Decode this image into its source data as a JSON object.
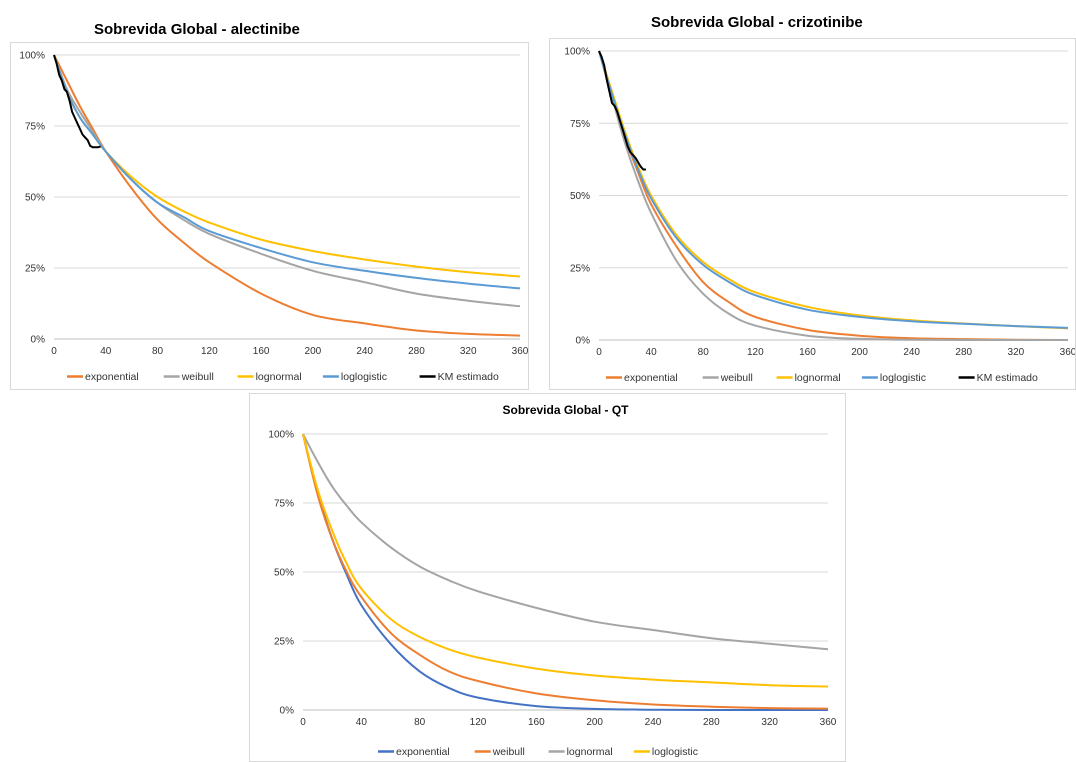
{
  "chart_data": [
    {
      "type": "line",
      "title": "Sobrevida Global - alectinibe",
      "xlabel": "",
      "ylabel": "",
      "xlim": [
        0,
        360
      ],
      "ylim": [
        0,
        1
      ],
      "x_ticks": [
        "0",
        "40",
        "80",
        "120",
        "160",
        "200",
        "240",
        "280",
        "320",
        "360"
      ],
      "y_ticks": [
        "0%",
        "25%",
        "50%",
        "75%",
        "100%"
      ],
      "grid": "horizontal",
      "legend": "bottom",
      "x": [
        0,
        10,
        20,
        30,
        40,
        60,
        80,
        100,
        120,
        160,
        200,
        240,
        280,
        320,
        360
      ],
      "series": [
        {
          "name": "exponential",
          "color": "#ED7D31",
          "y": [
            1.0,
            0.91,
            0.82,
            0.74,
            0.66,
            0.53,
            0.42,
            0.34,
            0.27,
            0.16,
            0.085,
            0.055,
            0.03,
            0.018,
            0.012
          ]
        },
        {
          "name": "weibull",
          "color": "#A5A5A5",
          "y": [
            1.0,
            0.88,
            0.8,
            0.73,
            0.66,
            0.56,
            0.48,
            0.42,
            0.37,
            0.3,
            0.24,
            0.2,
            0.16,
            0.135,
            0.115
          ]
        },
        {
          "name": "lognormal",
          "color": "#FFC000",
          "y": [
            1.0,
            0.87,
            0.78,
            0.72,
            0.66,
            0.57,
            0.5,
            0.45,
            0.41,
            0.35,
            0.31,
            0.28,
            0.255,
            0.235,
            0.22
          ]
        },
        {
          "name": "loglogistic",
          "color": "#5B9BD5",
          "y": [
            1.0,
            0.87,
            0.78,
            0.72,
            0.66,
            0.56,
            0.48,
            0.43,
            0.38,
            0.32,
            0.27,
            0.24,
            0.215,
            0.195,
            0.178
          ]
        }
      ],
      "km": {
        "name": "KM estimado",
        "color": "#000000",
        "points": [
          [
            0,
            1.0
          ],
          [
            2,
            0.97
          ],
          [
            4,
            0.93
          ],
          [
            6,
            0.91
          ],
          [
            8,
            0.88
          ],
          [
            10,
            0.87
          ],
          [
            12,
            0.84
          ],
          [
            14,
            0.8
          ],
          [
            16,
            0.78
          ],
          [
            18,
            0.76
          ],
          [
            20,
            0.74
          ],
          [
            22,
            0.72
          ],
          [
            24,
            0.71
          ],
          [
            26,
            0.7
          ],
          [
            28,
            0.68
          ],
          [
            30,
            0.675
          ],
          [
            34,
            0.675
          ],
          [
            36,
            0.678
          ]
        ]
      }
    },
    {
      "type": "line",
      "title": "Sobrevida Global - crizotinibe",
      "xlabel": "",
      "ylabel": "",
      "xlim": [
        0,
        360
      ],
      "ylim": [
        0,
        1
      ],
      "x_ticks": [
        "0",
        "40",
        "80",
        "120",
        "160",
        "200",
        "240",
        "280",
        "320",
        "360"
      ],
      "y_ticks": [
        "0%",
        "25%",
        "50%",
        "75%",
        "100%"
      ],
      "grid": "horizontal",
      "legend": "bottom",
      "x": [
        0,
        10,
        20,
        30,
        40,
        60,
        80,
        100,
        120,
        160,
        200,
        240,
        280,
        320,
        360
      ],
      "series": [
        {
          "name": "exponential",
          "color": "#ED7D31",
          "y": [
            1.0,
            0.84,
            0.7,
            0.58,
            0.47,
            0.32,
            0.2,
            0.13,
            0.08,
            0.035,
            0.015,
            0.006,
            0.003,
            0.001,
            0.0
          ]
        },
        {
          "name": "weibull",
          "color": "#A5A5A5",
          "y": [
            1.0,
            0.84,
            0.68,
            0.55,
            0.44,
            0.27,
            0.16,
            0.09,
            0.05,
            0.015,
            0.004,
            0.001,
            0.0,
            0.0,
            0.0
          ]
        },
        {
          "name": "lognormal",
          "color": "#FFC000",
          "y": [
            1.0,
            0.86,
            0.72,
            0.6,
            0.5,
            0.36,
            0.27,
            0.21,
            0.165,
            0.115,
            0.085,
            0.068,
            0.057,
            0.048,
            0.04
          ]
        },
        {
          "name": "loglogistic",
          "color": "#5B9BD5",
          "y": [
            1.0,
            0.85,
            0.71,
            0.59,
            0.49,
            0.35,
            0.26,
            0.2,
            0.155,
            0.105,
            0.08,
            0.065,
            0.056,
            0.048,
            0.042
          ]
        }
      ],
      "km": {
        "name": "KM estimado",
        "color": "#000000",
        "points": [
          [
            0,
            1.0
          ],
          [
            2,
            0.98
          ],
          [
            4,
            0.95
          ],
          [
            6,
            0.9
          ],
          [
            8,
            0.86
          ],
          [
            10,
            0.82
          ],
          [
            12,
            0.81
          ],
          [
            14,
            0.79
          ],
          [
            16,
            0.76
          ],
          [
            18,
            0.73
          ],
          [
            20,
            0.7
          ],
          [
            22,
            0.67
          ],
          [
            24,
            0.65
          ],
          [
            26,
            0.64
          ],
          [
            28,
            0.63
          ],
          [
            30,
            0.615
          ],
          [
            32,
            0.6
          ],
          [
            34,
            0.59
          ],
          [
            36,
            0.59
          ]
        ]
      }
    },
    {
      "type": "line",
      "title": "Sobrevida Global - QT",
      "xlabel": "",
      "ylabel": "",
      "xlim": [
        0,
        360
      ],
      "ylim": [
        0,
        1
      ],
      "x_ticks": [
        "0",
        "40",
        "80",
        "120",
        "160",
        "200",
        "240",
        "280",
        "320",
        "360"
      ],
      "y_ticks": [
        "0%",
        "25%",
        "50%",
        "75%",
        "100%"
      ],
      "grid": "horizontal",
      "legend": "bottom",
      "x": [
        0,
        10,
        20,
        30,
        40,
        60,
        80,
        100,
        120,
        160,
        200,
        240,
        280,
        320,
        360
      ],
      "series": [
        {
          "name": "exponential",
          "color": "#4472C4",
          "y": [
            1.0,
            0.79,
            0.62,
            0.49,
            0.38,
            0.24,
            0.14,
            0.08,
            0.045,
            0.014,
            0.004,
            0.001,
            0.0,
            0.0,
            0.0
          ]
        },
        {
          "name": "weibull",
          "color": "#ED7D31",
          "y": [
            1.0,
            0.78,
            0.62,
            0.5,
            0.41,
            0.28,
            0.2,
            0.14,
            0.105,
            0.06,
            0.035,
            0.02,
            0.012,
            0.007,
            0.005
          ]
        },
        {
          "name": "lognormal",
          "color": "#A5A5A5",
          "y": [
            1.0,
            0.9,
            0.81,
            0.74,
            0.68,
            0.59,
            0.52,
            0.47,
            0.43,
            0.37,
            0.32,
            0.29,
            0.26,
            0.24,
            0.22
          ]
        },
        {
          "name": "loglogistic",
          "color": "#FFC000",
          "y": [
            1.0,
            0.8,
            0.65,
            0.53,
            0.44,
            0.33,
            0.265,
            0.22,
            0.19,
            0.15,
            0.125,
            0.11,
            0.1,
            0.09,
            0.085
          ]
        }
      ]
    }
  ]
}
